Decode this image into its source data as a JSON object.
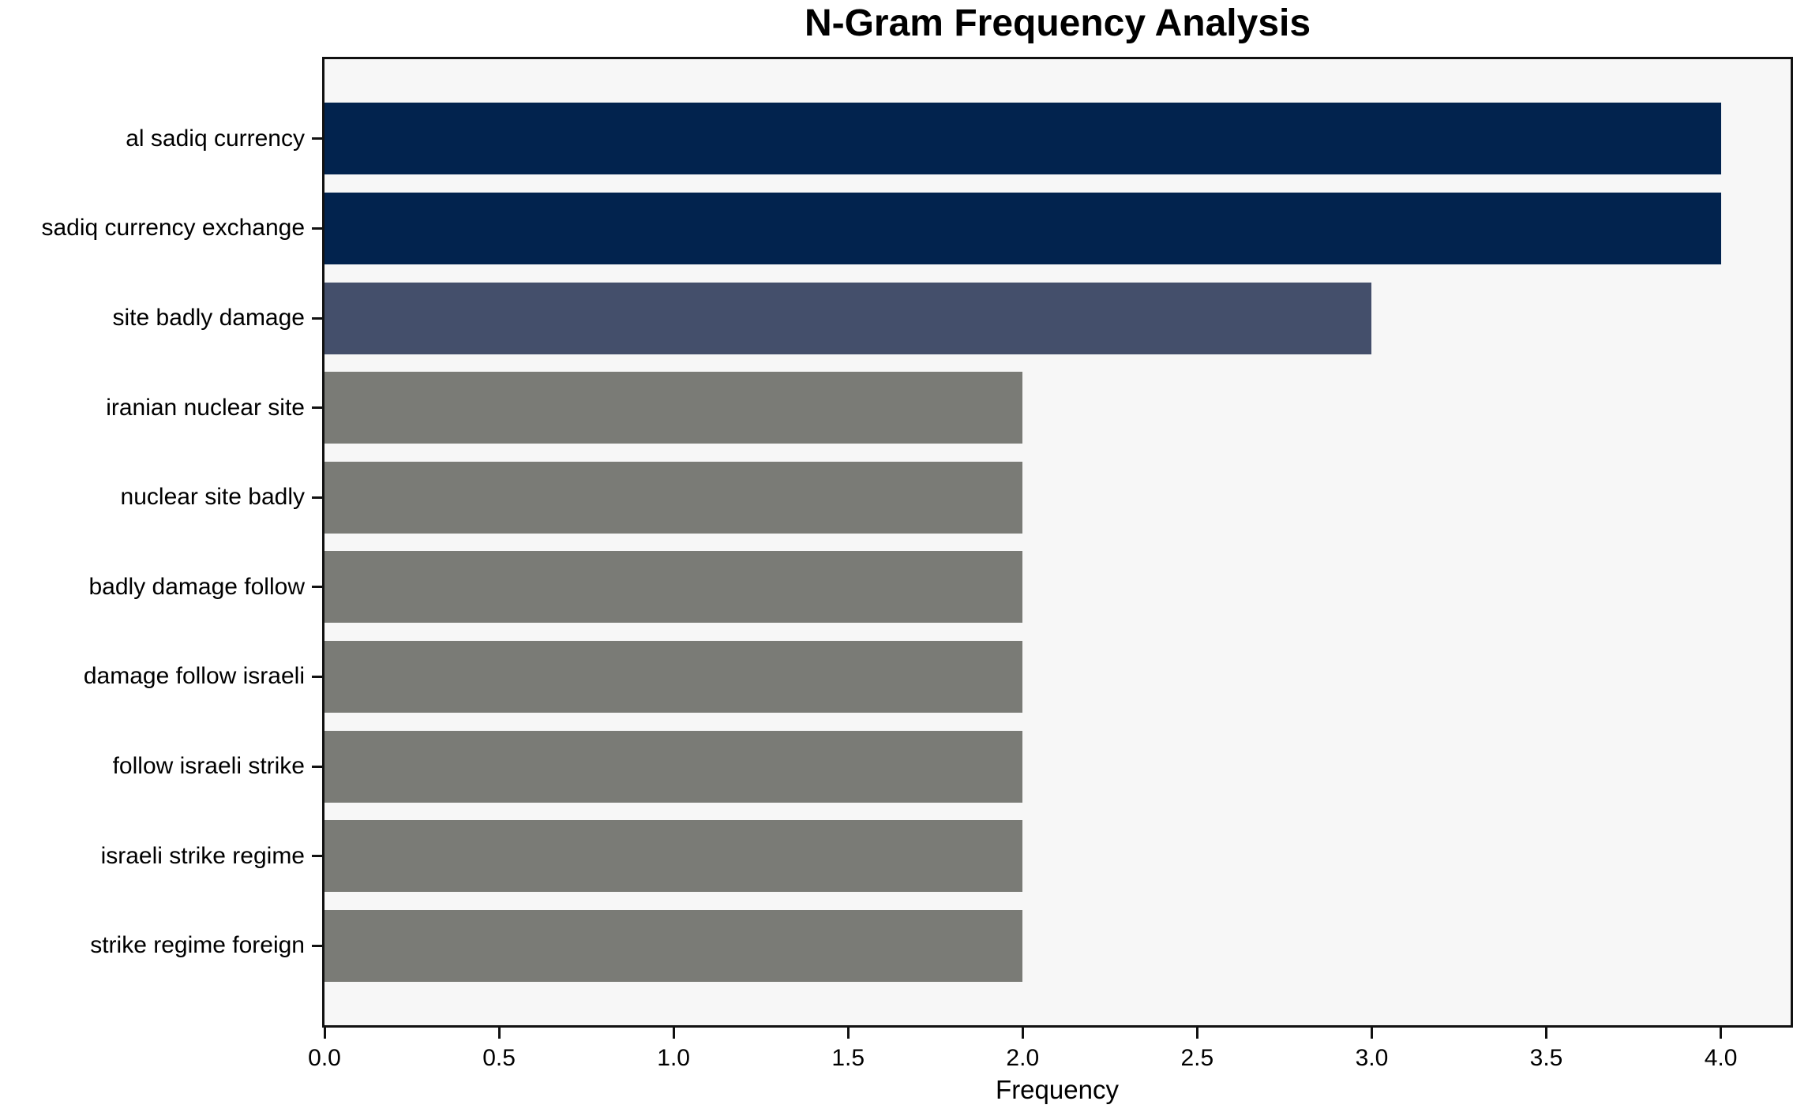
{
  "chart_data": {
    "type": "bar",
    "orientation": "horizontal",
    "title": "N-Gram Frequency Analysis",
    "xlabel": "Frequency",
    "ylabel": "",
    "categories": [
      "al sadiq currency",
      "sadiq currency exchange",
      "site badly damage",
      "iranian nuclear site",
      "nuclear site badly",
      "badly damage follow",
      "damage follow israeli",
      "follow israeli strike",
      "israeli strike regime",
      "strike regime foreign"
    ],
    "values": [
      4,
      4,
      3,
      2,
      2,
      2,
      2,
      2,
      2,
      2
    ],
    "bar_colors": [
      "#02234e",
      "#02234e",
      "#444f6b",
      "#7a7b76",
      "#7a7b76",
      "#7a7b76",
      "#7a7b76",
      "#7a7b76",
      "#7a7b76",
      "#7a7b76"
    ],
    "xlim": [
      0,
      4.2
    ],
    "xticks": [
      "0.0",
      "0.5",
      "1.0",
      "1.5",
      "2.0",
      "2.5",
      "3.0",
      "3.5",
      "4.0"
    ],
    "xtick_values": [
      0,
      0.5,
      1,
      1.5,
      2,
      2.5,
      3,
      3.5,
      4
    ],
    "grid": false,
    "legend": null,
    "colors": {
      "plot_background": "#f7f7f7",
      "figure_background": "#ffffff",
      "spine": "#111111",
      "text": "#000000",
      "freq4_bar": "#02234e",
      "freq3_bar": "#444f6b",
      "freq2_bar": "#7a7b76"
    }
  }
}
